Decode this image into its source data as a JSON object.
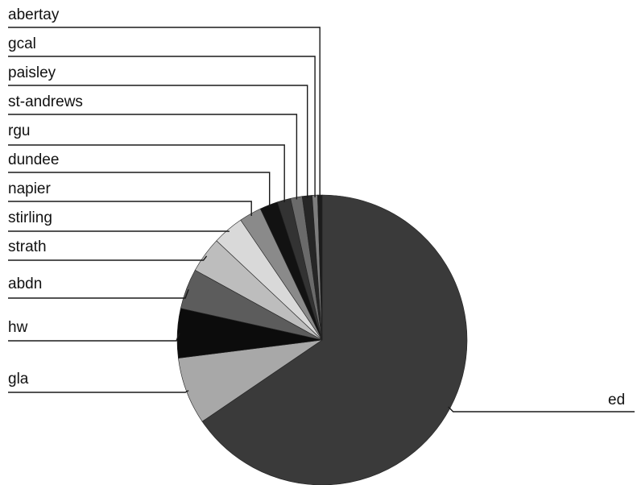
{
  "chart_data": {
    "type": "pie",
    "title": "",
    "start_angle_deg": 0,
    "direction": "clockwise",
    "slices": [
      {
        "label": "ed",
        "value": 65.5,
        "color": "#3a3a3a",
        "callout": "right"
      },
      {
        "label": "gla",
        "value": 7.5,
        "color": "#a8a8a8",
        "callout": "left"
      },
      {
        "label": "hw",
        "value": 5.5,
        "color": "#0c0c0c",
        "callout": "left"
      },
      {
        "label": "abdn",
        "value": 4.5,
        "color": "#5c5c5c",
        "callout": "left"
      },
      {
        "label": "strath",
        "value": 4.0,
        "color": "#bdbdbd",
        "callout": "left"
      },
      {
        "label": "stirling",
        "value": 3.5,
        "color": "#d9d9d9",
        "callout": "left"
      },
      {
        "label": "napier",
        "value": 2.5,
        "color": "#8a8a8a",
        "callout": "left"
      },
      {
        "label": "dundee",
        "value": 2.0,
        "color": "#121212",
        "callout": "left"
      },
      {
        "label": "rgu",
        "value": 1.5,
        "color": "#333333",
        "callout": "left"
      },
      {
        "label": "st-andrews",
        "value": 1.3,
        "color": "#6a6a6a",
        "callout": "left"
      },
      {
        "label": "paisley",
        "value": 1.1,
        "color": "#262626",
        "callout": "left"
      },
      {
        "label": "gcal",
        "value": 0.6,
        "color": "#7d7d7d",
        "callout": "left"
      },
      {
        "label": "abertay",
        "value": 0.5,
        "color": "#1c1c1c",
        "callout": "left"
      }
    ]
  }
}
